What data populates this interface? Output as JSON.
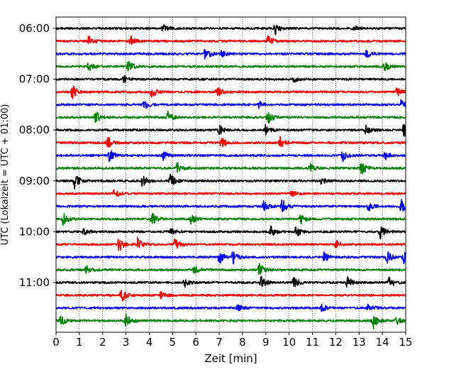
{
  "chart_data": {
    "type": "line",
    "title": "",
    "xlabel": "Zeit  [min]",
    "ylabel": "UTC (Lokalzeit = UTC + 01:00)",
    "xlim": [
      0,
      15
    ],
    "x_ticks": [
      "0",
      "1",
      "2",
      "3",
      "4",
      "5",
      "6",
      "7",
      "8",
      "9",
      "10",
      "11",
      "12",
      "13",
      "14",
      "15"
    ],
    "y_ticks": [
      {
        "label": "06:00",
        "row": 0
      },
      {
        "label": "07:00",
        "row": 4
      },
      {
        "label": "08:00",
        "row": 8
      },
      {
        "label": "09:00",
        "row": 12
      },
      {
        "label": "10:00",
        "row": 16
      },
      {
        "label": "11:00",
        "row": 20
      }
    ],
    "minutes_per_row": 15,
    "row_count": 24,
    "grid": "vertical dotted at each minute",
    "trace_colors": [
      "#000000",
      "#ff0000",
      "#0000ff",
      "#008000"
    ],
    "rows": [
      {
        "start": "06:00",
        "color": "#000000",
        "events": [
          [
            4.6,
            1.0
          ],
          [
            9.4,
            1.2
          ],
          [
            12.8,
            0.6
          ]
        ]
      },
      {
        "start": "06:15",
        "color": "#ff0000",
        "events": [
          [
            1.4,
            1.1
          ],
          [
            3.2,
            1.0
          ],
          [
            9.1,
            1.3
          ]
        ]
      },
      {
        "start": "06:30",
        "color": "#0000ff",
        "events": [
          [
            6.4,
            1.4
          ],
          [
            7.1,
            0.9
          ],
          [
            13.3,
            0.8
          ]
        ]
      },
      {
        "start": "06:45",
        "color": "#008000",
        "events": [
          [
            1.4,
            1.0
          ],
          [
            3.1,
            1.1
          ],
          [
            14.1,
            1.0
          ]
        ]
      },
      {
        "start": "07:00",
        "color": "#000000",
        "events": [
          [
            2.9,
            0.7
          ],
          [
            10.2,
            0.6
          ]
        ]
      },
      {
        "start": "07:15",
        "color": "#ff0000",
        "events": [
          [
            0.7,
            1.4
          ],
          [
            4.1,
            1.1
          ],
          [
            6.9,
            1.2
          ],
          [
            14.6,
            1.0
          ]
        ]
      },
      {
        "start": "07:30",
        "color": "#0000ff",
        "events": [
          [
            3.8,
            0.9
          ],
          [
            8.7,
            0.8
          ],
          [
            14.8,
            1.0
          ]
        ]
      },
      {
        "start": "07:45",
        "color": "#008000",
        "events": [
          [
            1.7,
            1.2
          ],
          [
            4.8,
            1.1
          ],
          [
            9.1,
            1.3
          ]
        ]
      },
      {
        "start": "08:00",
        "color": "#000000",
        "events": [
          [
            7.0,
            1.1
          ],
          [
            9.0,
            1.1
          ],
          [
            13.3,
            1.4
          ],
          [
            14.9,
            1.4
          ]
        ]
      },
      {
        "start": "08:15",
        "color": "#ff0000",
        "events": [
          [
            2.2,
            1.3
          ],
          [
            7.1,
            1.1
          ],
          [
            9.6,
            1.5
          ]
        ]
      },
      {
        "start": "08:30",
        "color": "#0000ff",
        "events": [
          [
            2.3,
            1.5
          ],
          [
            4.6,
            0.9
          ],
          [
            12.3,
            1.2
          ],
          [
            14.1,
            0.9
          ]
        ]
      },
      {
        "start": "08:45",
        "color": "#008000",
        "events": [
          [
            5.2,
            1.1
          ],
          [
            10.9,
            0.8
          ],
          [
            13.1,
            1.5
          ]
        ]
      },
      {
        "start": "09:00",
        "color": "#000000",
        "events": [
          [
            0.8,
            1.5
          ],
          [
            3.7,
            1.2
          ],
          [
            4.9,
            1.4
          ],
          [
            11.4,
            0.9
          ]
        ]
      },
      {
        "start": "09:15",
        "color": "#ff0000",
        "events": [
          [
            2.5,
            0.8
          ],
          [
            10.1,
            0.6
          ]
        ]
      },
      {
        "start": "09:30",
        "color": "#0000ff",
        "events": [
          [
            8.9,
            1.0
          ],
          [
            9.7,
            1.6
          ],
          [
            13.4,
            1.0
          ],
          [
            14.8,
            1.3
          ]
        ]
      },
      {
        "start": "09:45",
        "color": "#008000",
        "events": [
          [
            0.3,
            1.3
          ],
          [
            4.1,
            1.4
          ],
          [
            5.8,
            1.1
          ],
          [
            10.5,
            1.0
          ]
        ]
      },
      {
        "start": "10:00",
        "color": "#000000",
        "events": [
          [
            1.2,
            0.9
          ],
          [
            4.9,
            0.8
          ],
          [
            9.2,
            1.2
          ],
          [
            10.3,
            1.1
          ],
          [
            13.9,
            1.5
          ]
        ]
      },
      {
        "start": "10:15",
        "color": "#ff0000",
        "events": [
          [
            2.7,
            1.5
          ],
          [
            3.5,
            1.3
          ],
          [
            5.1,
            1.2
          ],
          [
            12.0,
            0.8
          ]
        ]
      },
      {
        "start": "10:30",
        "color": "#0000ff",
        "events": [
          [
            7.0,
            1.3
          ],
          [
            7.6,
            1.5
          ],
          [
            11.5,
            1.1
          ],
          [
            14.2,
            1.3
          ],
          [
            14.9,
            1.5
          ]
        ]
      },
      {
        "start": "10:45",
        "color": "#008000",
        "events": [
          [
            1.3,
            0.8
          ],
          [
            5.9,
            0.9
          ],
          [
            8.7,
            1.5
          ]
        ]
      },
      {
        "start": "11:00",
        "color": "#000000",
        "events": [
          [
            5.5,
            0.9
          ],
          [
            8.8,
            1.2
          ],
          [
            10.2,
            1.4
          ],
          [
            12.5,
            1.3
          ],
          [
            14.3,
            1.3
          ]
        ]
      },
      {
        "start": "11:15",
        "color": "#ff0000",
        "events": [
          [
            2.8,
            1.4
          ],
          [
            4.5,
            0.9
          ]
        ]
      },
      {
        "start": "11:30",
        "color": "#0000ff",
        "events": [
          [
            7.8,
            0.7
          ],
          [
            11.4,
            0.7
          ],
          [
            13.4,
            0.9
          ]
        ]
      },
      {
        "start": "11:45",
        "color": "#008000",
        "events": [
          [
            0.2,
            1.1
          ],
          [
            3.0,
            1.4
          ],
          [
            13.6,
            1.6
          ],
          [
            14.6,
            0.8
          ]
        ]
      }
    ]
  }
}
